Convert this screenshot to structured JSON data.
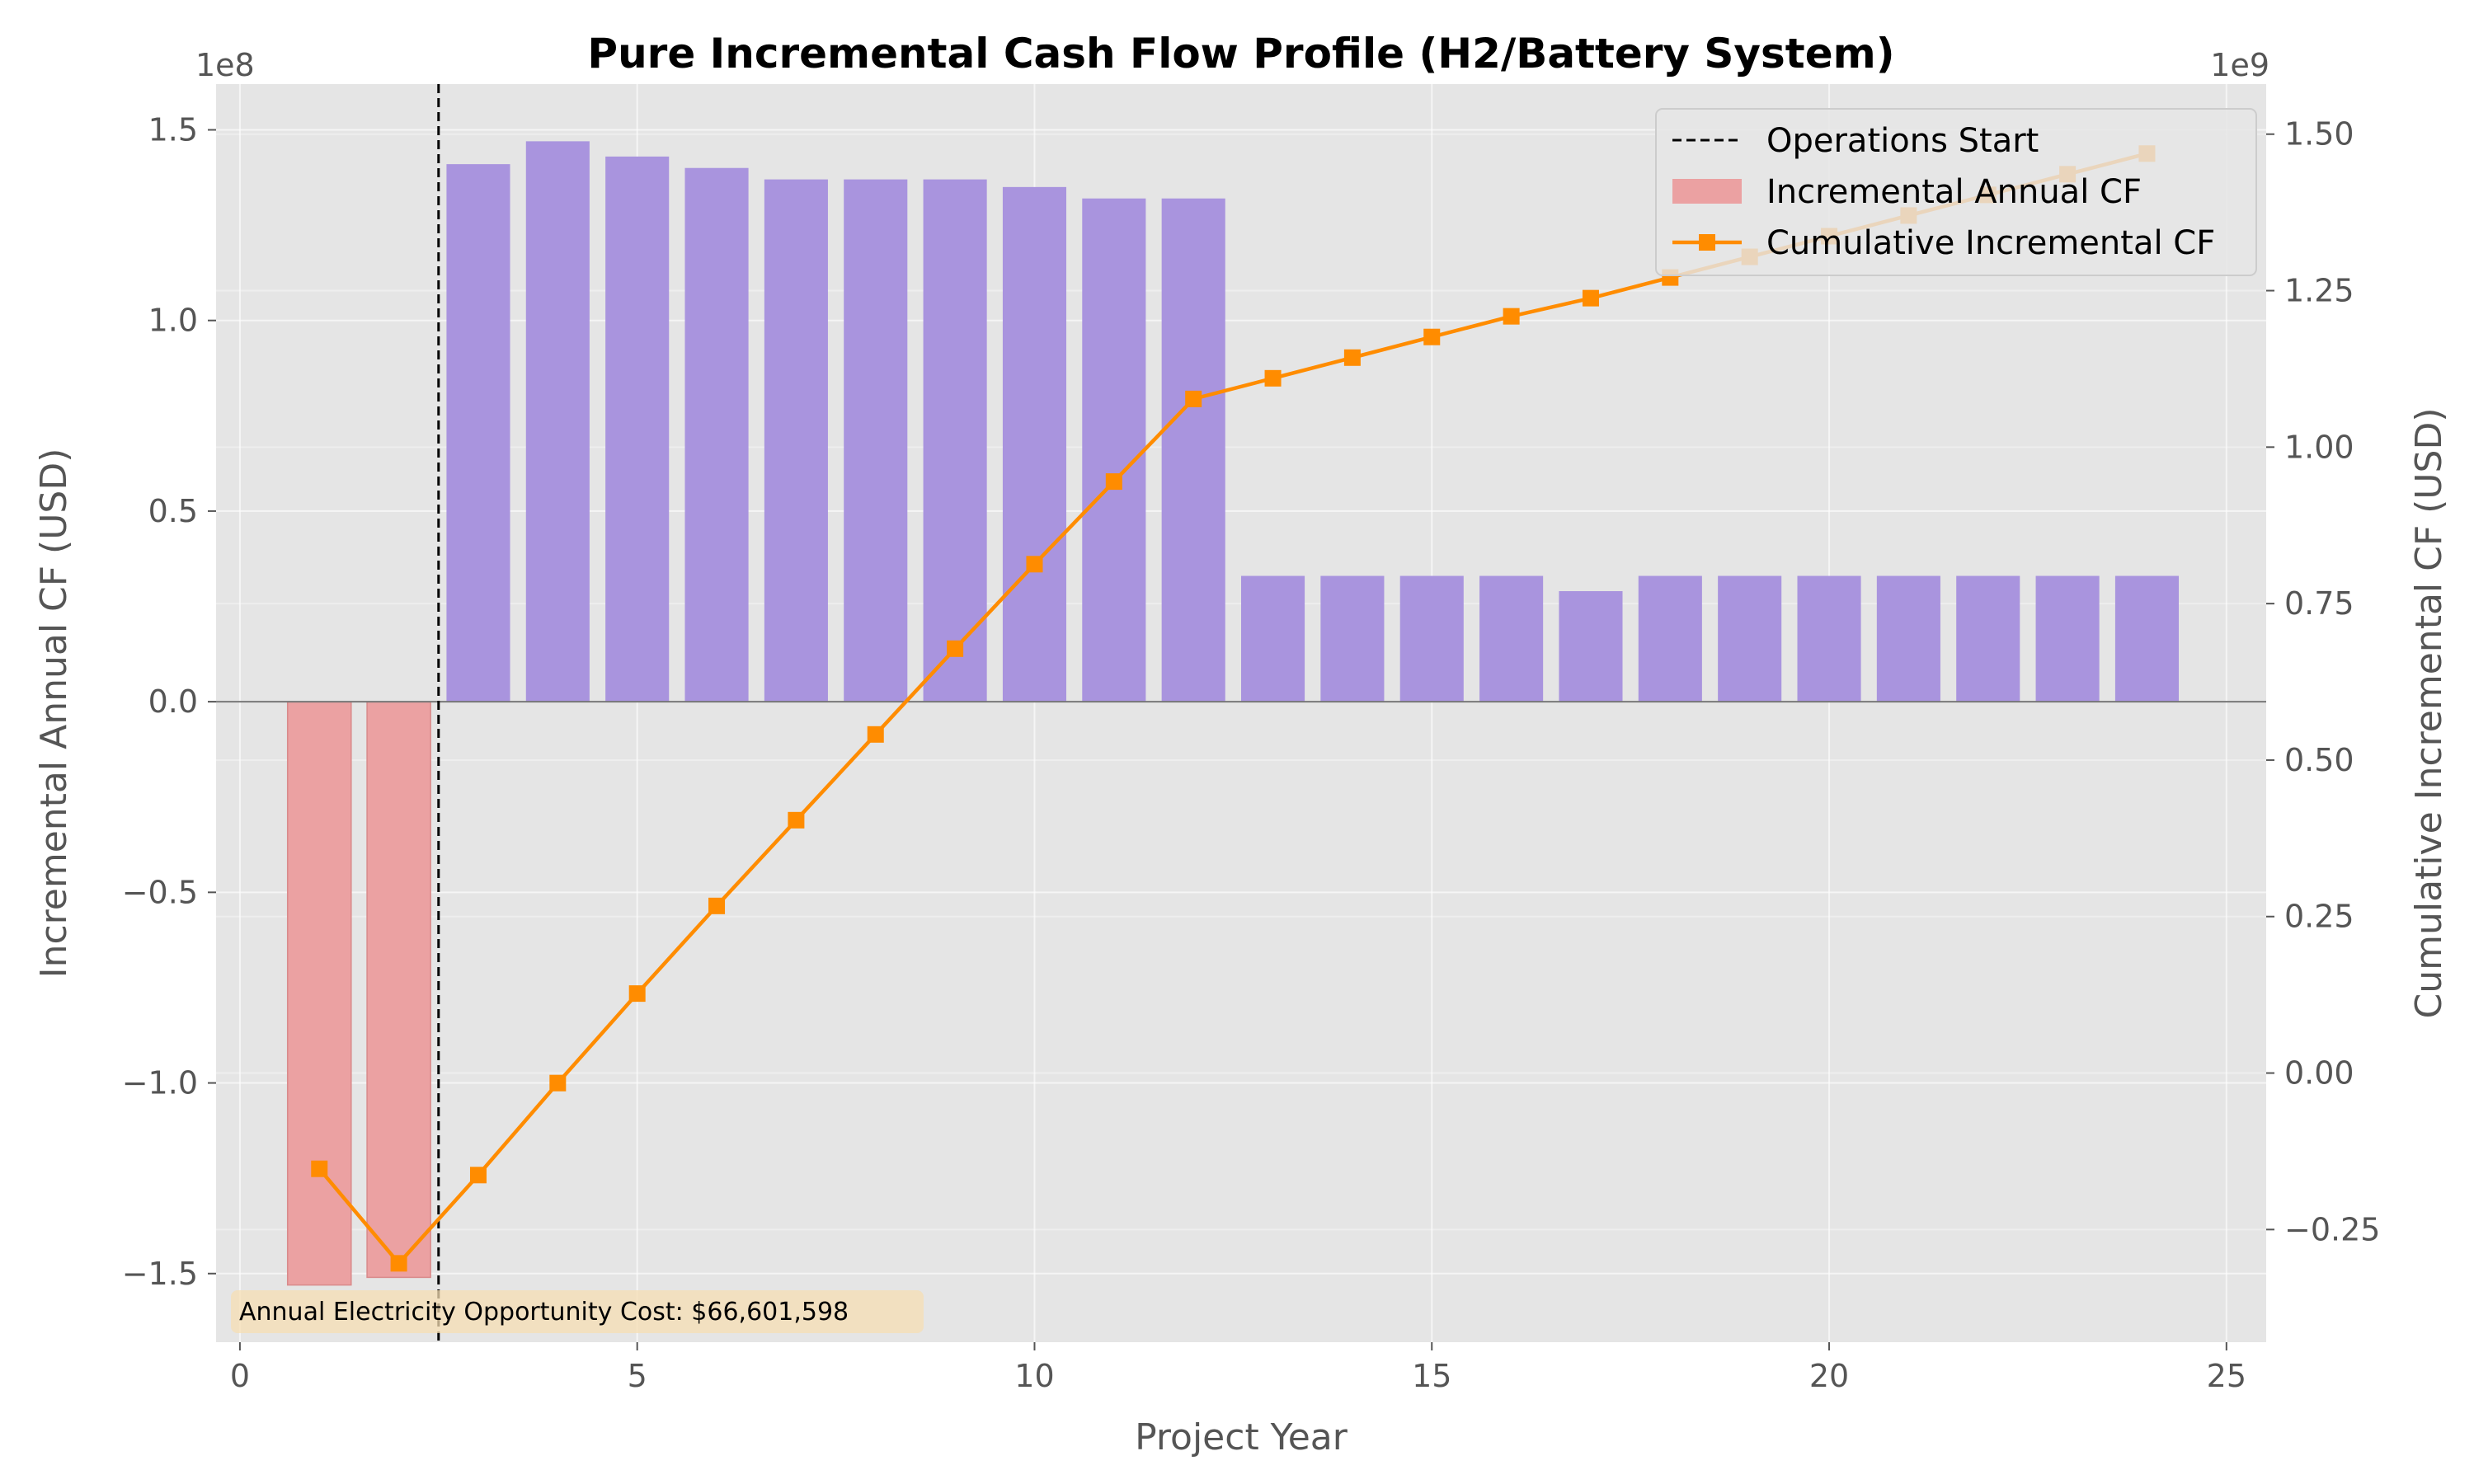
{
  "chart_data": {
    "type": "bar",
    "title": "Pure Incremental Cash Flow Profile (H2/Battery System)",
    "xlabel": "Project Year",
    "ylabel": "Incremental Annual CF (USD)",
    "ylabel_right": "Cumulative Incremental CF (USD)",
    "left_offset_label": "1e8",
    "right_offset_label": "1e9",
    "xlim": [
      -0.3,
      25.5
    ],
    "ylim": [
      -168000000.0,
      162000000.0
    ],
    "ylim_right": [
      -430000000.0,
      1580000000.0
    ],
    "x_ticks": [
      0,
      5,
      10,
      15,
      20,
      25
    ],
    "x_tick_labels": [
      "0",
      "5",
      "10",
      "15",
      "20",
      "25"
    ],
    "y_ticks": [
      -150000000.0,
      -100000000.0,
      -50000000.0,
      0,
      50000000.0,
      100000000.0,
      150000000.0
    ],
    "y_tick_labels": [
      "−1.5",
      "−1.0",
      "−0.5",
      "0.0",
      "0.5",
      "1.0",
      "1.5"
    ],
    "y_ticks_right": [
      -250000000.0,
      0,
      250000000.0,
      500000000.0,
      750000000.0,
      1000000000.0,
      1250000000.0,
      1500000000.0
    ],
    "y_tick_labels_right": [
      "−0.25",
      "0.00",
      "0.25",
      "0.50",
      "0.75",
      "1.00",
      "1.25",
      "1.50"
    ],
    "grid": true,
    "legend_placement": "top-right",
    "operations_start_x": 2.5,
    "annotation": "Annual Electricity Opportunity Cost: $66,601,598",
    "colors": {
      "positive_bar": "#a994de",
      "negative_bar": "#eba1a2",
      "cumulative": "#ff8c00",
      "vline": "#000000",
      "background": "#e5e5e5",
      "annotation_box": "#f5deb3"
    },
    "series": [
      {
        "name": "Incremental Annual CF",
        "axis": "left",
        "x": [
          1,
          2,
          3,
          4,
          5,
          6,
          7,
          8,
          9,
          10,
          11,
          12,
          13,
          14,
          15,
          16,
          17,
          18,
          19,
          20,
          21,
          22,
          23,
          24
        ],
        "values": [
          -153000000.0,
          -151000000.0,
          141000000.0,
          147000000.0,
          143000000.0,
          140000000.0,
          137000000.0,
          137000000.0,
          137000000.0,
          135000000.0,
          132000000.0,
          132000000.0,
          33000000.0,
          33000000.0,
          33000000.0,
          33000000.0,
          29000000.0,
          33000000.0,
          33000000.0,
          33000000.0,
          33000000.0,
          33000000.0,
          33000000.0,
          33000000.0
        ]
      },
      {
        "name": "Cumulative Incremental CF",
        "axis": "right",
        "x": [
          1,
          2,
          3,
          4,
          5,
          6,
          7,
          8,
          9,
          10,
          11,
          12,
          13,
          14,
          15,
          16,
          17,
          18,
          19,
          20,
          21,
          22,
          23,
          24
        ],
        "values": [
          -153000000.0,
          -304000000.0,
          -163000000.0,
          -16000000.0,
          127000000.0,
          267000000.0,
          404000000.0,
          541000000.0,
          678000000.0,
          813000000.0,
          945000000.0,
          1077000000.0,
          1110000000.0,
          1143000000.0,
          1176000000.0,
          1209000000.0,
          1238000000.0,
          1271000000.0,
          1304000000.0,
          1337000000.0,
          1370000000.0,
          1403000000.0,
          1436000000.0,
          1469000000.0
        ]
      }
    ],
    "legend": [
      {
        "label": "Operations Start",
        "kind": "dashed-line"
      },
      {
        "label": "Incremental Annual CF",
        "kind": "patch"
      },
      {
        "label": "Cumulative Incremental CF",
        "kind": "line-marker"
      }
    ]
  }
}
